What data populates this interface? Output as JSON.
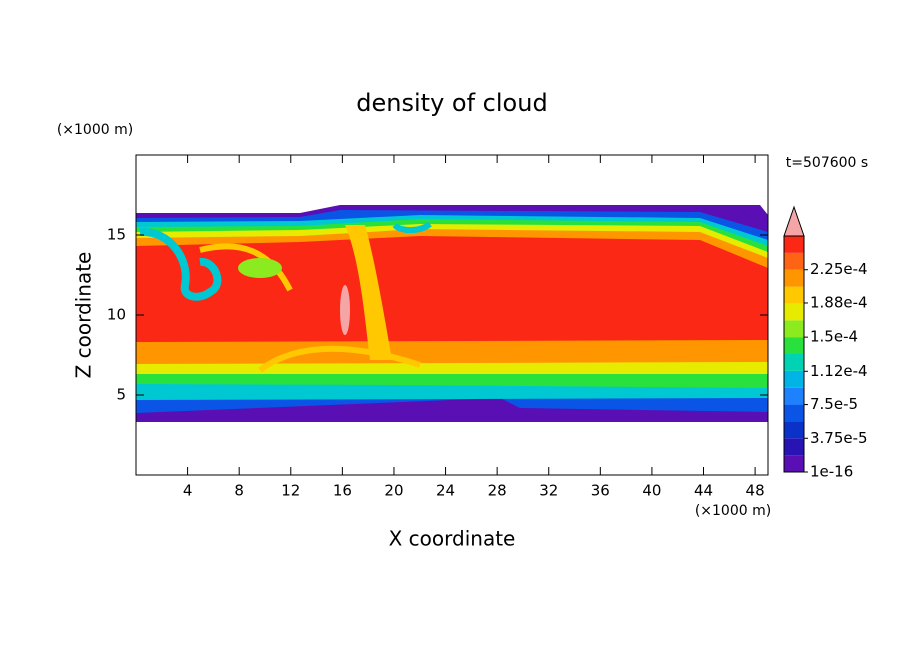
{
  "chart_data": {
    "type": "contour",
    "title": "density of cloud",
    "x_label": "X coordinate",
    "y_label": "Z coordinate",
    "x_unit": "(×1000 m)",
    "y_unit": "(×1000 m)",
    "time_label": "t=507600 s",
    "xlim": [
      0,
      49
    ],
    "ylim": [
      0,
      20
    ],
    "xticks": [
      4,
      8,
      12,
      16,
      20,
      24,
      28,
      32,
      36,
      40,
      44,
      48
    ],
    "yticks": [
      5,
      10,
      15
    ],
    "colorbar": {
      "lim": [
        0,
        0.0002625
      ],
      "ticks": [
        {
          "value": 1e-16,
          "label": "1e-16"
        },
        {
          "value": 3.75e-05,
          "label": "3.75e-5"
        },
        {
          "value": 7.5e-05,
          "label": "7.5e-5"
        },
        {
          "value": 0.000112,
          "label": "1.12e-4"
        },
        {
          "value": 0.00015,
          "label": "1.5e-4"
        },
        {
          "value": 0.000188,
          "label": "1.88e-4"
        },
        {
          "value": 0.000225,
          "label": "2.25e-4"
        }
      ],
      "colors": [
        "#5a0fb4",
        "#2814b4",
        "#0a32c8",
        "#0a55e6",
        "#1e82ff",
        "#00b4e6",
        "#00d2b4",
        "#28e13c",
        "#8ceb1e",
        "#e6eb00",
        "#ffc800",
        "#ff9600",
        "#ff6414",
        "#fa2814"
      ],
      "extend_color": "#f5a5a5"
    }
  }
}
